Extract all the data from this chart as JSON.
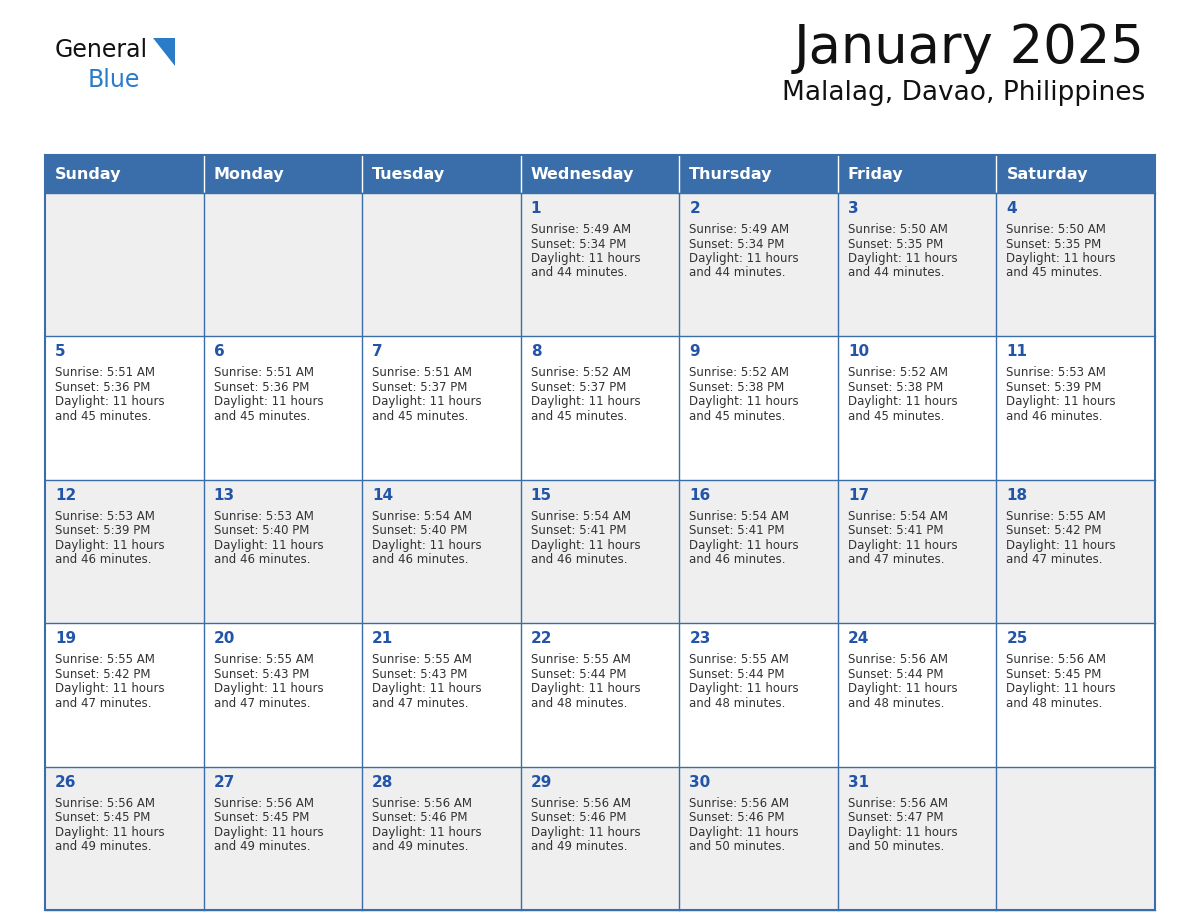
{
  "title": "January 2025",
  "subtitle": "Malalag, Davao, Philippines",
  "days_of_week": [
    "Sunday",
    "Monday",
    "Tuesday",
    "Wednesday",
    "Thursday",
    "Friday",
    "Saturday"
  ],
  "header_bg": "#3A6EAA",
  "header_text": "#FFFFFF",
  "cell_bg_even": "#EFEFEF",
  "cell_bg_odd": "#FFFFFF",
  "border_color": "#3A6EAA",
  "day_num_color": "#2255AA",
  "content_text_color": "#333333",
  "title_color": "#111111",
  "subtitle_color": "#111111",
  "calendar": [
    [
      null,
      null,
      null,
      {
        "day": 1,
        "sunrise": "5:49 AM",
        "sunset": "5:34 PM",
        "daylight_h": "11 hours",
        "daylight_m": "and 44 minutes."
      },
      {
        "day": 2,
        "sunrise": "5:49 AM",
        "sunset": "5:34 PM",
        "daylight_h": "11 hours",
        "daylight_m": "and 44 minutes."
      },
      {
        "day": 3,
        "sunrise": "5:50 AM",
        "sunset": "5:35 PM",
        "daylight_h": "11 hours",
        "daylight_m": "and 44 minutes."
      },
      {
        "day": 4,
        "sunrise": "5:50 AM",
        "sunset": "5:35 PM",
        "daylight_h": "11 hours",
        "daylight_m": "and 45 minutes."
      }
    ],
    [
      {
        "day": 5,
        "sunrise": "5:51 AM",
        "sunset": "5:36 PM",
        "daylight_h": "11 hours",
        "daylight_m": "and 45 minutes."
      },
      {
        "day": 6,
        "sunrise": "5:51 AM",
        "sunset": "5:36 PM",
        "daylight_h": "11 hours",
        "daylight_m": "and 45 minutes."
      },
      {
        "day": 7,
        "sunrise": "5:51 AM",
        "sunset": "5:37 PM",
        "daylight_h": "11 hours",
        "daylight_m": "and 45 minutes."
      },
      {
        "day": 8,
        "sunrise": "5:52 AM",
        "sunset": "5:37 PM",
        "daylight_h": "11 hours",
        "daylight_m": "and 45 minutes."
      },
      {
        "day": 9,
        "sunrise": "5:52 AM",
        "sunset": "5:38 PM",
        "daylight_h": "11 hours",
        "daylight_m": "and 45 minutes."
      },
      {
        "day": 10,
        "sunrise": "5:52 AM",
        "sunset": "5:38 PM",
        "daylight_h": "11 hours",
        "daylight_m": "and 45 minutes."
      },
      {
        "day": 11,
        "sunrise": "5:53 AM",
        "sunset": "5:39 PM",
        "daylight_h": "11 hours",
        "daylight_m": "and 46 minutes."
      }
    ],
    [
      {
        "day": 12,
        "sunrise": "5:53 AM",
        "sunset": "5:39 PM",
        "daylight_h": "11 hours",
        "daylight_m": "and 46 minutes."
      },
      {
        "day": 13,
        "sunrise": "5:53 AM",
        "sunset": "5:40 PM",
        "daylight_h": "11 hours",
        "daylight_m": "and 46 minutes."
      },
      {
        "day": 14,
        "sunrise": "5:54 AM",
        "sunset": "5:40 PM",
        "daylight_h": "11 hours",
        "daylight_m": "and 46 minutes."
      },
      {
        "day": 15,
        "sunrise": "5:54 AM",
        "sunset": "5:41 PM",
        "daylight_h": "11 hours",
        "daylight_m": "and 46 minutes."
      },
      {
        "day": 16,
        "sunrise": "5:54 AM",
        "sunset": "5:41 PM",
        "daylight_h": "11 hours",
        "daylight_m": "and 46 minutes."
      },
      {
        "day": 17,
        "sunrise": "5:54 AM",
        "sunset": "5:41 PM",
        "daylight_h": "11 hours",
        "daylight_m": "and 47 minutes."
      },
      {
        "day": 18,
        "sunrise": "5:55 AM",
        "sunset": "5:42 PM",
        "daylight_h": "11 hours",
        "daylight_m": "and 47 minutes."
      }
    ],
    [
      {
        "day": 19,
        "sunrise": "5:55 AM",
        "sunset": "5:42 PM",
        "daylight_h": "11 hours",
        "daylight_m": "and 47 minutes."
      },
      {
        "day": 20,
        "sunrise": "5:55 AM",
        "sunset": "5:43 PM",
        "daylight_h": "11 hours",
        "daylight_m": "and 47 minutes."
      },
      {
        "day": 21,
        "sunrise": "5:55 AM",
        "sunset": "5:43 PM",
        "daylight_h": "11 hours",
        "daylight_m": "and 47 minutes."
      },
      {
        "day": 22,
        "sunrise": "5:55 AM",
        "sunset": "5:44 PM",
        "daylight_h": "11 hours",
        "daylight_m": "and 48 minutes."
      },
      {
        "day": 23,
        "sunrise": "5:55 AM",
        "sunset": "5:44 PM",
        "daylight_h": "11 hours",
        "daylight_m": "and 48 minutes."
      },
      {
        "day": 24,
        "sunrise": "5:56 AM",
        "sunset": "5:44 PM",
        "daylight_h": "11 hours",
        "daylight_m": "and 48 minutes."
      },
      {
        "day": 25,
        "sunrise": "5:56 AM",
        "sunset": "5:45 PM",
        "daylight_h": "11 hours",
        "daylight_m": "and 48 minutes."
      }
    ],
    [
      {
        "day": 26,
        "sunrise": "5:56 AM",
        "sunset": "5:45 PM",
        "daylight_h": "11 hours",
        "daylight_m": "and 49 minutes."
      },
      {
        "day": 27,
        "sunrise": "5:56 AM",
        "sunset": "5:45 PM",
        "daylight_h": "11 hours",
        "daylight_m": "and 49 minutes."
      },
      {
        "day": 28,
        "sunrise": "5:56 AM",
        "sunset": "5:46 PM",
        "daylight_h": "11 hours",
        "daylight_m": "and 49 minutes."
      },
      {
        "day": 29,
        "sunrise": "5:56 AM",
        "sunset": "5:46 PM",
        "daylight_h": "11 hours",
        "daylight_m": "and 49 minutes."
      },
      {
        "day": 30,
        "sunrise": "5:56 AM",
        "sunset": "5:46 PM",
        "daylight_h": "11 hours",
        "daylight_m": "and 50 minutes."
      },
      {
        "day": 31,
        "sunrise": "5:56 AM",
        "sunset": "5:47 PM",
        "daylight_h": "11 hours",
        "daylight_m": "and 50 minutes."
      },
      null
    ]
  ],
  "logo_text_color": "#1a1a1a",
  "logo_blue_color": "#2A7BC8"
}
